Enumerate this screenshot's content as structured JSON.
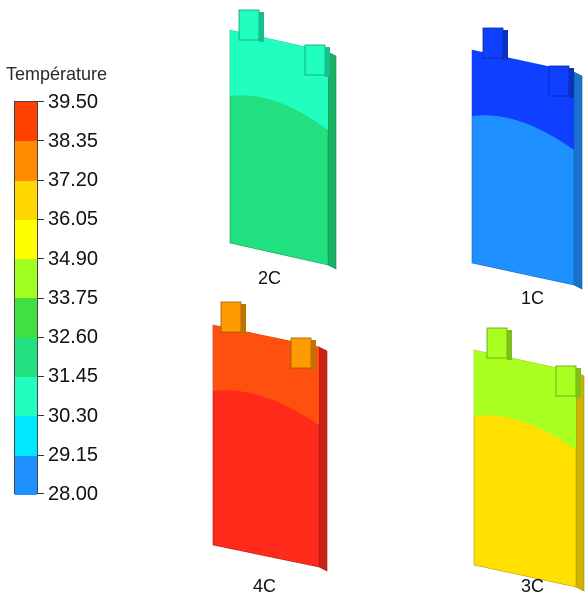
{
  "legend": {
    "title": "Température",
    "ticks": [
      "39.50",
      "38.35",
      "37.20",
      "36.05",
      "34.90",
      "33.75",
      "32.60",
      "31.45",
      "30.30",
      "29.15",
      "28.00"
    ],
    "colors": [
      "#ff4000",
      "#ff8c00",
      "#ffd700",
      "#ffff00",
      "#a0ff20",
      "#40e040",
      "#20e080",
      "#20ffc0",
      "#00e8ff",
      "#1e90ff",
      "#0030ff"
    ]
  },
  "cases": [
    {
      "label": "2C",
      "top_color": "#20ffc0",
      "body_color": "#20e080",
      "tab_color": "#20ffc0"
    },
    {
      "label": "1C",
      "top_color": "#1040ff",
      "body_color": "#1e90ff",
      "tab_color": "#1040ff"
    },
    {
      "label": "4C",
      "top_color": "#ff5010",
      "body_color": "#ff2a1a",
      "tab_color": "#ff9a00"
    },
    {
      "label": "3C",
      "top_color": "#a8ff20",
      "body_color": "#ffe000",
      "tab_color": "#a8ff20"
    }
  ]
}
